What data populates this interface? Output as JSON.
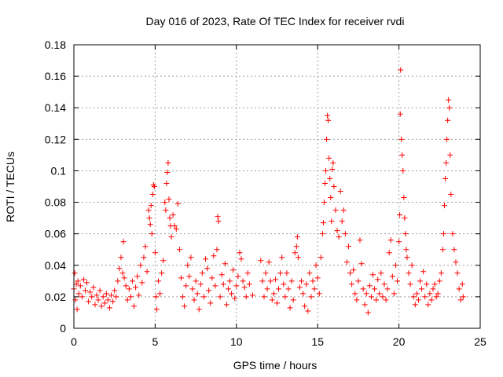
{
  "chart_data": {
    "type": "scatter",
    "title": "Day 016 of 2023, Rate Of TEC Index for receiver rvdi",
    "xlabel": "GPS time / hours",
    "ylabel": "ROTI / TECUs",
    "xlim": [
      0,
      25
    ],
    "ylim": [
      0,
      0.18
    ],
    "x_ticks": [
      0,
      5,
      10,
      15,
      20,
      25
    ],
    "x_tick_labels": [
      "0",
      "5",
      "10",
      "15",
      "20",
      "25"
    ],
    "y_ticks": [
      0,
      0.02,
      0.04,
      0.06,
      0.08,
      0.1,
      0.12,
      0.14,
      0.16,
      0.18
    ],
    "y_tick_labels": [
      "0",
      "0.02",
      "0.04",
      "0.06",
      "0.08",
      "0.1",
      "0.12",
      "0.14",
      "0.16",
      "0.18"
    ],
    "grid": true,
    "marker": "+",
    "color": "#ff0000",
    "series": [
      {
        "points": [
          [
            0.0,
            0.025
          ],
          [
            0.05,
            0.035
          ],
          [
            0.1,
            0.018
          ],
          [
            0.15,
            0.028
          ],
          [
            0.2,
            0.012
          ],
          [
            0.25,
            0.03
          ],
          [
            0.3,
            0.022
          ],
          [
            0.4,
            0.027
          ],
          [
            0.5,
            0.02
          ],
          [
            0.6,
            0.031
          ],
          [
            0.7,
            0.024
          ],
          [
            0.8,
            0.029
          ],
          [
            0.9,
            0.017
          ],
          [
            1.0,
            0.023
          ],
          [
            1.1,
            0.02
          ],
          [
            1.2,
            0.026
          ],
          [
            1.3,
            0.015
          ],
          [
            1.4,
            0.021
          ],
          [
            1.5,
            0.018
          ],
          [
            1.6,
            0.024
          ],
          [
            1.7,
            0.014
          ],
          [
            1.8,
            0.02
          ],
          [
            1.9,
            0.016
          ],
          [
            2.0,
            0.022
          ],
          [
            2.1,
            0.018
          ],
          [
            2.2,
            0.013
          ],
          [
            2.3,
            0.021
          ],
          [
            2.4,
            0.017
          ],
          [
            2.5,
            0.024
          ],
          [
            2.6,
            0.02
          ],
          [
            2.7,
            0.03
          ],
          [
            2.8,
            0.038
          ],
          [
            2.9,
            0.045
          ],
          [
            3.0,
            0.035
          ],
          [
            3.05,
            0.055
          ],
          [
            3.1,
            0.032
          ],
          [
            3.2,
            0.027
          ],
          [
            3.3,
            0.018
          ],
          [
            3.4,
            0.025
          ],
          [
            3.5,
            0.02
          ],
          [
            3.6,
            0.03
          ],
          [
            3.7,
            0.014
          ],
          [
            3.8,
            0.026
          ],
          [
            3.9,
            0.033
          ],
          [
            4.0,
            0.021
          ],
          [
            4.1,
            0.04
          ],
          [
            4.2,
            0.029
          ],
          [
            4.3,
            0.045
          ],
          [
            4.4,
            0.052
          ],
          [
            4.5,
            0.036
          ],
          [
            4.6,
            0.075
          ],
          [
            4.65,
            0.07
          ],
          [
            4.7,
            0.066
          ],
          [
            4.75,
            0.078
          ],
          [
            4.8,
            0.06
          ],
          [
            4.85,
            0.085
          ],
          [
            4.9,
            0.091
          ],
          [
            4.95,
            0.09
          ],
          [
            5.0,
            0.048
          ],
          [
            5.05,
            0.02
          ],
          [
            5.1,
            0.012
          ],
          [
            5.2,
            0.03
          ],
          [
            5.3,
            0.022
          ],
          [
            5.4,
            0.035
          ],
          [
            5.5,
            0.043
          ],
          [
            5.6,
            0.08
          ],
          [
            5.65,
            0.075
          ],
          [
            5.7,
            0.092
          ],
          [
            5.75,
            0.099
          ],
          [
            5.8,
            0.105
          ],
          [
            5.85,
            0.082
          ],
          [
            5.9,
            0.07
          ],
          [
            5.95,
            0.065
          ],
          [
            6.0,
            0.058
          ],
          [
            6.1,
            0.072
          ],
          [
            6.2,
            0.065
          ],
          [
            6.3,
            0.063
          ],
          [
            6.4,
            0.079
          ],
          [
            6.5,
            0.05
          ],
          [
            6.6,
            0.032
          ],
          [
            6.7,
            0.02
          ],
          [
            6.8,
            0.014
          ],
          [
            6.9,
            0.027
          ],
          [
            7.0,
            0.04
          ],
          [
            7.1,
            0.033
          ],
          [
            7.2,
            0.045
          ],
          [
            7.3,
            0.025
          ],
          [
            7.4,
            0.018
          ],
          [
            7.5,
            0.03
          ],
          [
            7.6,
            0.022
          ],
          [
            7.7,
            0.012
          ],
          [
            7.8,
            0.028
          ],
          [
            7.9,
            0.035
          ],
          [
            8.0,
            0.02
          ],
          [
            8.1,
            0.044
          ],
          [
            8.2,
            0.038
          ],
          [
            8.3,
            0.024
          ],
          [
            8.4,
            0.016
          ],
          [
            8.5,
            0.032
          ],
          [
            8.6,
            0.046
          ],
          [
            8.7,
            0.027
          ],
          [
            8.8,
            0.05
          ],
          [
            8.85,
            0.071
          ],
          [
            8.9,
            0.068
          ],
          [
            9.0,
            0.02
          ],
          [
            9.1,
            0.034
          ],
          [
            9.2,
            0.028
          ],
          [
            9.3,
            0.041
          ],
          [
            9.4,
            0.015
          ],
          [
            9.5,
            0.025
          ],
          [
            9.6,
            0.03
          ],
          [
            9.7,
            0.022
          ],
          [
            9.8,
            0.037
          ],
          [
            9.9,
            0.019
          ],
          [
            10.0,
            0.027
          ],
          [
            10.1,
            0.033
          ],
          [
            10.2,
            0.048
          ],
          [
            10.3,
            0.044
          ],
          [
            10.4,
            0.03
          ],
          [
            10.5,
            0.026
          ],
          [
            10.6,
            0.02
          ],
          [
            10.7,
            0.035
          ],
          [
            10.8,
            0.028
          ],
          [
            11.0,
            0.021
          ],
          [
            11.5,
            0.043
          ],
          [
            11.6,
            0.03
          ],
          [
            11.7,
            0.02
          ],
          [
            11.8,
            0.035
          ],
          [
            11.9,
            0.025
          ],
          [
            12.0,
            0.042
          ],
          [
            12.1,
            0.03
          ],
          [
            12.2,
            0.018
          ],
          [
            12.3,
            0.022
          ],
          [
            12.4,
            0.031
          ],
          [
            12.5,
            0.016
          ],
          [
            12.6,
            0.025
          ],
          [
            12.7,
            0.035
          ],
          [
            12.8,
            0.045
          ],
          [
            12.9,
            0.028
          ],
          [
            13.0,
            0.02
          ],
          [
            13.1,
            0.035
          ],
          [
            13.2,
            0.025
          ],
          [
            13.3,
            0.013
          ],
          [
            13.4,
            0.03
          ],
          [
            13.5,
            0.018
          ],
          [
            13.6,
            0.048
          ],
          [
            13.7,
            0.052
          ],
          [
            13.75,
            0.058
          ],
          [
            13.8,
            0.045
          ],
          [
            13.9,
            0.026
          ],
          [
            14.0,
            0.03
          ],
          [
            14.1,
            0.022
          ],
          [
            14.2,
            0.014
          ],
          [
            14.3,
            0.028
          ],
          [
            14.4,
            0.011
          ],
          [
            14.5,
            0.035
          ],
          [
            14.6,
            0.02
          ],
          [
            14.7,
            0.03
          ],
          [
            14.8,
            0.025
          ],
          [
            14.9,
            0.04
          ],
          [
            15.0,
            0.032
          ],
          [
            15.1,
            0.022
          ],
          [
            15.2,
            0.045
          ],
          [
            15.3,
            0.06
          ],
          [
            15.35,
            0.067
          ],
          [
            15.4,
            0.08
          ],
          [
            15.45,
            0.092
          ],
          [
            15.5,
            0.1
          ],
          [
            15.55,
            0.12
          ],
          [
            15.6,
            0.135
          ],
          [
            15.65,
            0.132
          ],
          [
            15.7,
            0.108
          ],
          [
            15.75,
            0.095
          ],
          [
            15.8,
            0.083
          ],
          [
            15.85,
            0.068
          ],
          [
            15.9,
            0.101
          ],
          [
            15.95,
            0.105
          ],
          [
            16.0,
            0.09
          ],
          [
            16.1,
            0.075
          ],
          [
            16.2,
            0.062
          ],
          [
            16.3,
            0.058
          ],
          [
            16.4,
            0.087
          ],
          [
            16.5,
            0.068
          ],
          [
            16.6,
            0.075
          ],
          [
            16.7,
            0.06
          ],
          [
            16.8,
            0.042
          ],
          [
            16.9,
            0.052
          ],
          [
            17.0,
            0.035
          ],
          [
            17.1,
            0.028
          ],
          [
            17.2,
            0.037
          ],
          [
            17.3,
            0.022
          ],
          [
            17.4,
            0.018
          ],
          [
            17.5,
            0.03
          ],
          [
            17.6,
            0.056
          ],
          [
            17.7,
            0.041
          ],
          [
            17.8,
            0.025
          ],
          [
            17.9,
            0.015
          ],
          [
            18.0,
            0.022
          ],
          [
            18.1,
            0.01
          ],
          [
            18.2,
            0.027
          ],
          [
            18.3,
            0.02
          ],
          [
            18.4,
            0.034
          ],
          [
            18.5,
            0.025
          ],
          [
            18.6,
            0.018
          ],
          [
            18.7,
            0.031
          ],
          [
            18.8,
            0.022
          ],
          [
            18.9,
            0.035
          ],
          [
            19.0,
            0.02
          ],
          [
            19.1,
            0.028
          ],
          [
            19.2,
            0.018
          ],
          [
            19.3,
            0.025
          ],
          [
            19.4,
            0.048
          ],
          [
            19.5,
            0.056
          ],
          [
            19.6,
            0.033
          ],
          [
            19.7,
            0.022
          ],
          [
            19.8,
            0.04
          ],
          [
            19.9,
            0.03
          ],
          [
            20.0,
            0.055
          ],
          [
            20.05,
            0.072
          ],
          [
            20.08,
            0.136
          ],
          [
            20.1,
            0.164
          ],
          [
            20.15,
            0.12
          ],
          [
            20.2,
            0.11
          ],
          [
            20.25,
            0.1
          ],
          [
            20.3,
            0.083
          ],
          [
            20.35,
            0.07
          ],
          [
            20.4,
            0.06
          ],
          [
            20.45,
            0.05
          ],
          [
            20.5,
            0.045
          ],
          [
            20.6,
            0.035
          ],
          [
            20.7,
            0.028
          ],
          [
            20.8,
            0.04
          ],
          [
            20.9,
            0.02
          ],
          [
            21.0,
            0.015
          ],
          [
            21.1,
            0.022
          ],
          [
            21.2,
            0.018
          ],
          [
            21.3,
            0.03
          ],
          [
            21.4,
            0.025
          ],
          [
            21.5,
            0.036
          ],
          [
            21.6,
            0.02
          ],
          [
            21.7,
            0.028
          ],
          [
            21.8,
            0.015
          ],
          [
            21.9,
            0.022
          ],
          [
            22.0,
            0.018
          ],
          [
            22.1,
            0.025
          ],
          [
            22.2,
            0.028
          ],
          [
            22.3,
            0.02
          ],
          [
            22.4,
            0.022
          ],
          [
            22.5,
            0.03
          ],
          [
            22.6,
            0.035
          ],
          [
            22.7,
            0.05
          ],
          [
            22.75,
            0.06
          ],
          [
            22.8,
            0.078
          ],
          [
            22.85,
            0.095
          ],
          [
            22.9,
            0.105
          ],
          [
            22.95,
            0.12
          ],
          [
            23.0,
            0.132
          ],
          [
            23.05,
            0.145
          ],
          [
            23.1,
            0.14
          ],
          [
            23.15,
            0.11
          ],
          [
            23.2,
            0.085
          ],
          [
            23.3,
            0.06
          ],
          [
            23.4,
            0.05
          ],
          [
            23.5,
            0.042
          ],
          [
            23.6,
            0.035
          ],
          [
            23.7,
            0.025
          ],
          [
            23.8,
            0.018
          ],
          [
            23.9,
            0.028
          ],
          [
            23.95,
            0.02
          ]
        ]
      }
    ]
  }
}
